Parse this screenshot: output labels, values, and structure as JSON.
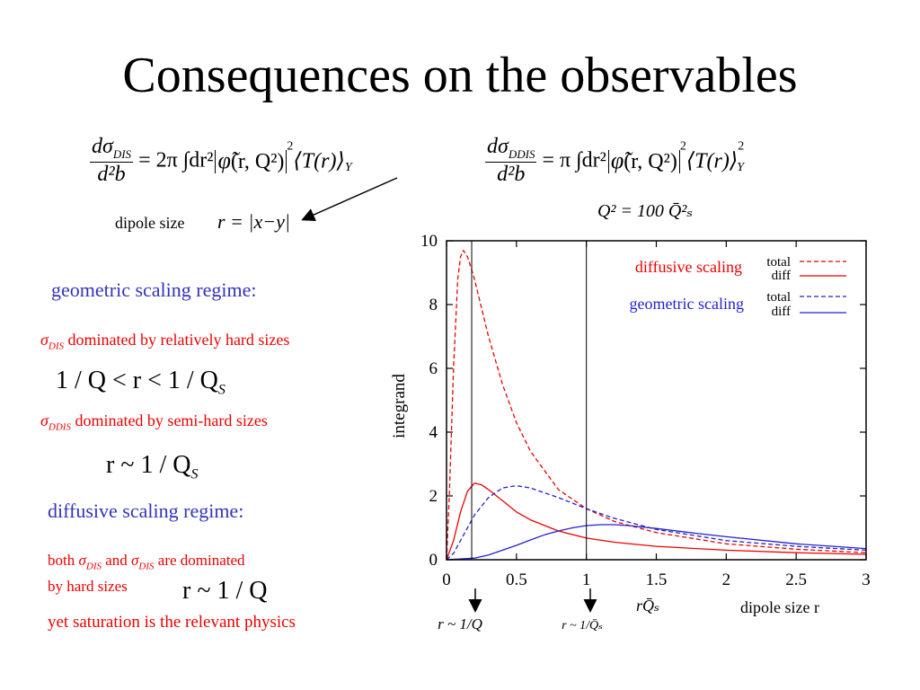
{
  "title": "Consequences on the observables",
  "formula_dis": {
    "d_sigma": "dσ",
    "sub": "DIS",
    "d2b": "d²b",
    "rhs_prefix": "= 2π ∫dr²",
    "phi_args": "(r, Q²)",
    "exp2": "2",
    "T": "⟨T(r)⟩",
    "Y": "Y"
  },
  "formula_ddis": {
    "d_sigma": "dσ",
    "sub": "DDIS",
    "d2b": "d²b",
    "rhs_prefix": "= π ∫dr²",
    "phi_args": "(r, Q²)",
    "exp2": "2",
    "T": "⟨T(r)⟩",
    "exp2b": "2",
    "Y": "Y"
  },
  "q2_relation": "Q² = 100 Q̄²ₛ",
  "dipole_size_label": "dipole size",
  "dipole_formula": "r = |x−y|",
  "left": {
    "geo_heading": "geometric scaling regime:",
    "dis_sigma": "σ",
    "dis_sub": "DIS",
    "dis_text": "dominated by relatively hard sizes",
    "geo_range": "1 / Q < r < 1 / Q",
    "geo_range_sub": "S",
    "ddis_sigma": "σ",
    "ddis_sub": "DDIS",
    "ddis_text": "dominated by semi-hard sizes",
    "semi_hard": "r ~ 1 / Q",
    "semi_hard_sub": "S",
    "diff_heading": "diffusive scaling regime:",
    "both_a": "both",
    "both_sigma1": "σ",
    "both_sub1": "DIS",
    "both_and": "and",
    "both_sigma2": "σ",
    "both_sub2": "DIS",
    "both_b": "are dominated",
    "by_hard": "by hard sizes",
    "hard_formula": "r ~ 1 / Q",
    "saturation": "yet saturation is the relevant physics"
  },
  "chart_data": {
    "type": "line",
    "xlim": [
      0,
      3
    ],
    "ylim": [
      0,
      10
    ],
    "x_ticks": [
      "0",
      "0.5",
      "1",
      "1.5",
      "2",
      "2.5",
      "3"
    ],
    "y_ticks": [
      "0",
      "2",
      "4",
      "6",
      "8",
      "10"
    ],
    "ylabel": "integrand",
    "xlabel": "dipole size r",
    "xlabel_extra": "rQ̄ₛ",
    "vlines": [
      0.18,
      1.0
    ],
    "arrow_label_1": "r ~ 1/Q",
    "arrow_label_2": "r ~ 1/Q̄ₛ",
    "legend": {
      "group1": "diffusive scaling",
      "group2": "geometric scaling",
      "total": "total",
      "diff": "diff"
    },
    "colors": {
      "diffusive": "#ee0000",
      "geometric": "#2222cc"
    },
    "series": [
      {
        "group": "diffusive scaling",
        "kind": "total",
        "style": "dashed",
        "color": "#ee0000",
        "x": [
          0,
          0.02,
          0.05,
          0.08,
          0.1,
          0.12,
          0.15,
          0.2,
          0.25,
          0.3,
          0.4,
          0.5,
          0.6,
          0.8,
          1.0,
          1.2,
          1.5,
          2.0,
          2.5,
          3.0
        ],
        "y": [
          0,
          2.0,
          6.0,
          8.8,
          9.5,
          9.7,
          9.5,
          8.8,
          7.9,
          7.0,
          5.5,
          4.3,
          3.4,
          2.2,
          1.6,
          1.2,
          0.85,
          0.5,
          0.33,
          0.22
        ]
      },
      {
        "group": "diffusive scaling",
        "kind": "diff",
        "style": "solid",
        "color": "#ee0000",
        "x": [
          0,
          0.05,
          0.1,
          0.15,
          0.2,
          0.25,
          0.3,
          0.4,
          0.5,
          0.6,
          0.8,
          1.0,
          1.2,
          1.5,
          2.0,
          2.5,
          3.0
        ],
        "y": [
          0,
          0.6,
          1.5,
          2.15,
          2.4,
          2.35,
          2.2,
          1.85,
          1.5,
          1.25,
          0.9,
          0.68,
          0.55,
          0.42,
          0.3,
          0.22,
          0.17
        ]
      },
      {
        "group": "geometric scaling",
        "kind": "total",
        "style": "dashed",
        "color": "#2222cc",
        "x": [
          0,
          0.05,
          0.1,
          0.2,
          0.3,
          0.4,
          0.5,
          0.6,
          0.7,
          0.8,
          1.0,
          1.2,
          1.5,
          2.0,
          2.5,
          3.0
        ],
        "y": [
          0,
          0.2,
          0.6,
          1.4,
          1.95,
          2.25,
          2.32,
          2.25,
          2.1,
          1.95,
          1.6,
          1.3,
          0.95,
          0.6,
          0.42,
          0.3
        ]
      },
      {
        "group": "geometric scaling",
        "kind": "diff",
        "style": "solid",
        "color": "#2222cc",
        "x": [
          0,
          0.2,
          0.3,
          0.4,
          0.5,
          0.6,
          0.7,
          0.8,
          0.9,
          1.0,
          1.1,
          1.2,
          1.3,
          1.5,
          1.8,
          2.0,
          2.5,
          3.0
        ],
        "y": [
          0,
          0.05,
          0.15,
          0.3,
          0.45,
          0.62,
          0.78,
          0.9,
          1.0,
          1.07,
          1.1,
          1.1,
          1.07,
          0.98,
          0.82,
          0.72,
          0.5,
          0.35
        ]
      }
    ]
  }
}
